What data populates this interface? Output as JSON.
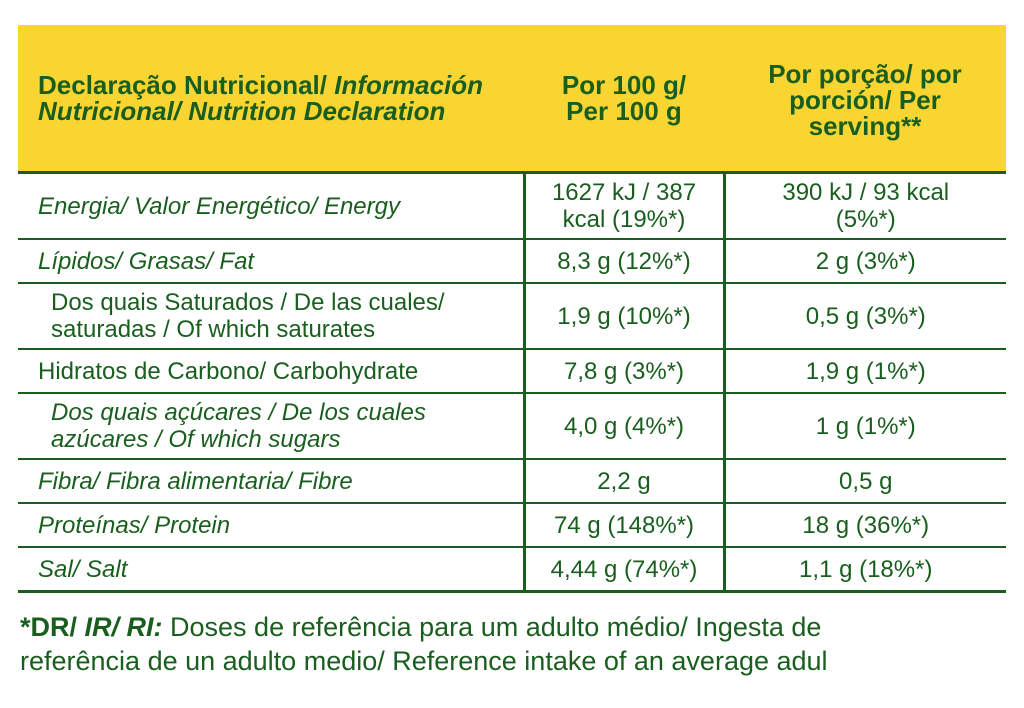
{
  "header": {
    "col1_a": "Declaração Nutricional/ ",
    "col1_b": "Información",
    "col1_c": "Nutricional/ Nutrition Declaration",
    "col2_line1": "Por 100 g/",
    "col2_line2": "Per 100 g",
    "col3_line1": "Por porção/ por",
    "col3_line2": "porción/ Per",
    "col3_line3": "serving**"
  },
  "rows": [
    {
      "label": "Energia/ Valor Energético/ Energy",
      "per100_line1": "1627 kJ / 387",
      "per100_line2": "kcal (19%*)",
      "serving_line1": "390 kJ / 93 kcal",
      "serving_line2": "(5%*)"
    },
    {
      "label": "Lípidos/ Grasas/ Fat",
      "per100": "8,3 g (12%*)",
      "serving": "2 g (3%*)"
    },
    {
      "label_line1": "Dos quais Saturados / De las cuales/",
      "label_line2": "saturadas / Of which saturates",
      "per100": "1,9 g (10%*)",
      "serving": "0,5 g (3%*)"
    },
    {
      "label": "Hidratos de Carbono/ Carbohydrate",
      "per100": "7,8 g (3%*)",
      "serving": "1,9 g (1%*)"
    },
    {
      "label_line1": "Dos quais açúcares / De los cuales",
      "label_line2": "azúcares / Of which sugars",
      "per100": "4,0 g (4%*)",
      "serving": "1 g (1%*)"
    },
    {
      "label": "Fibra/ Fibra alimentaria/ Fibre",
      "per100": "2,2 g",
      "serving": "0,5 g"
    },
    {
      "label": "Proteínas/ Protein",
      "per100": "74 g (148%*)",
      "serving": "18 g (36%*)"
    },
    {
      "label": "Sal/ Salt",
      "per100": "4,44 g (74%*)",
      "serving": "1,1 g (18%*)"
    }
  ],
  "footnote": {
    "mark_a": "*DR/ ",
    "mark_b": "IR/ RI:",
    "text_line1": " Doses de referência para um adulto médio/ Ingesta de",
    "text_line2": "referência de un adulto medio/ Reference intake of an average adul"
  },
  "colors": {
    "header_bg": "#f9d531",
    "text_green": "#1a5e1f"
  }
}
